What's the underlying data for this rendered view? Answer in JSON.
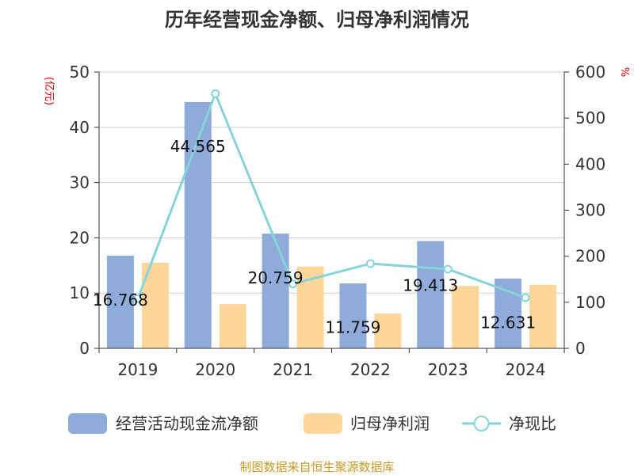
{
  "chart_data": {
    "type": "bar",
    "title": "历年经营现金净额、归母净利润情况",
    "categories": [
      "2019",
      "2020",
      "2021",
      "2022",
      "2023",
      "2024"
    ],
    "series": [
      {
        "name": "经营活动现金流净额",
        "type": "bar",
        "axis": "left",
        "color": "#8eabd9",
        "values": [
          16.768,
          44.565,
          20.759,
          11.759,
          19.413,
          12.631
        ],
        "labels": [
          "16.768",
          "44.565",
          "20.759",
          "11.759",
          "19.413",
          "12.631"
        ]
      },
      {
        "name": "归母净利润",
        "type": "bar",
        "axis": "left",
        "color": "#ffd699",
        "values": [
          15.5,
          8.0,
          14.8,
          6.3,
          11.3,
          11.5
        ]
      },
      {
        "name": "净现比",
        "type": "line",
        "axis": "right",
        "color": "#86d4d8",
        "values": [
          108,
          553,
          140,
          184,
          172,
          110
        ]
      }
    ],
    "y_left": {
      "unit": "(亿元)",
      "ylim": [
        0,
        50
      ],
      "ticks": [
        "0",
        "10",
        "20",
        "30",
        "40",
        "50"
      ]
    },
    "y_right": {
      "unit": "%",
      "ylim": [
        0,
        600
      ],
      "ticks": [
        "0",
        "100",
        "200",
        "300",
        "400",
        "500",
        "600"
      ]
    },
    "grid": true,
    "legend_position": "bottom",
    "source": "制图数据来自恒生聚源数据库"
  }
}
